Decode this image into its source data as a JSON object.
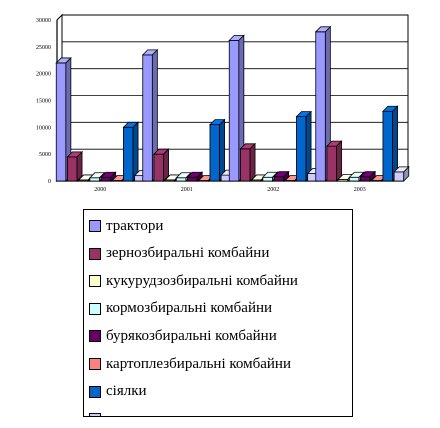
{
  "chart_data": {
    "type": "bar",
    "title": "",
    "xlabel": "",
    "ylabel": "",
    "categories": [
      "2000",
      "2001",
      "2002",
      "2003"
    ],
    "ylim": [
      0,
      30000
    ],
    "yticks": [
      "0",
      "5000",
      "10000",
      "15000",
      "20000",
      "25000",
      "30000"
    ],
    "grid": true,
    "legend_position": "bottom",
    "style": "3d-clustered",
    "series": [
      {
        "name": "трактори",
        "color": "#9999ff",
        "values": [
          22000,
          23500,
          26200,
          27800
        ]
      },
      {
        "name": "зернозбиральні комбайни",
        "color": "#993366",
        "values": [
          4500,
          5000,
          6000,
          6500
        ]
      },
      {
        "name": "кукурудзозбиральні комбайни",
        "color": "#ffffcc",
        "values": [
          200,
          200,
          200,
          300
        ]
      },
      {
        "name": "кормозбиральні комбайни",
        "color": "#ccffff",
        "values": [
          600,
          600,
          700,
          700
        ]
      },
      {
        "name": "бурякозбиральні комбайни",
        "color": "#660066",
        "values": [
          700,
          700,
          800,
          800
        ]
      },
      {
        "name": "картоплезбиральні комбайни",
        "color": "#ff8080",
        "values": [
          100,
          100,
          100,
          100
        ]
      },
      {
        "name": "сіялки",
        "color": "#0066cc",
        "values": [
          10000,
          10500,
          12000,
          13000
        ]
      },
      {
        "name": "",
        "color": "#ccccff",
        "values": [
          1000,
          1100,
          1400,
          1700
        ]
      }
    ]
  }
}
